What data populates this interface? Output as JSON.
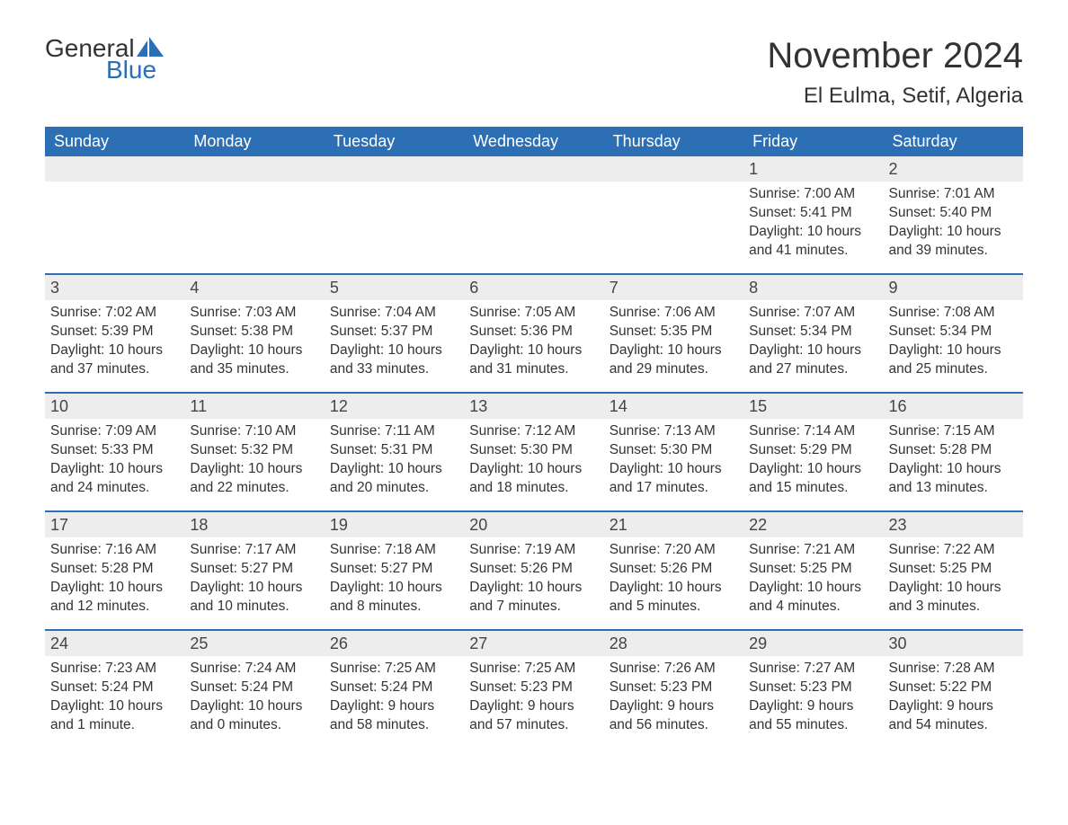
{
  "logo": {
    "top": "General",
    "bottom": "Blue",
    "icon_color": "#2c6fb5"
  },
  "title": "November 2024",
  "location": "El Eulma, Setif, Algeria",
  "header_bg": "#2c6fb5",
  "daynum_bg": "#ededed",
  "week_border": "#2c6fb5",
  "dow": [
    "Sunday",
    "Monday",
    "Tuesday",
    "Wednesday",
    "Thursday",
    "Friday",
    "Saturday"
  ],
  "weeks": [
    [
      null,
      null,
      null,
      null,
      null,
      {
        "n": "1",
        "sr": "7:00 AM",
        "ss": "5:41 PM",
        "dl": "10 hours and 41 minutes."
      },
      {
        "n": "2",
        "sr": "7:01 AM",
        "ss": "5:40 PM",
        "dl": "10 hours and 39 minutes."
      }
    ],
    [
      {
        "n": "3",
        "sr": "7:02 AM",
        "ss": "5:39 PM",
        "dl": "10 hours and 37 minutes."
      },
      {
        "n": "4",
        "sr": "7:03 AM",
        "ss": "5:38 PM",
        "dl": "10 hours and 35 minutes."
      },
      {
        "n": "5",
        "sr": "7:04 AM",
        "ss": "5:37 PM",
        "dl": "10 hours and 33 minutes."
      },
      {
        "n": "6",
        "sr": "7:05 AM",
        "ss": "5:36 PM",
        "dl": "10 hours and 31 minutes."
      },
      {
        "n": "7",
        "sr": "7:06 AM",
        "ss": "5:35 PM",
        "dl": "10 hours and 29 minutes."
      },
      {
        "n": "8",
        "sr": "7:07 AM",
        "ss": "5:34 PM",
        "dl": "10 hours and 27 minutes."
      },
      {
        "n": "9",
        "sr": "7:08 AM",
        "ss": "5:34 PM",
        "dl": "10 hours and 25 minutes."
      }
    ],
    [
      {
        "n": "10",
        "sr": "7:09 AM",
        "ss": "5:33 PM",
        "dl": "10 hours and 24 minutes."
      },
      {
        "n": "11",
        "sr": "7:10 AM",
        "ss": "5:32 PM",
        "dl": "10 hours and 22 minutes."
      },
      {
        "n": "12",
        "sr": "7:11 AM",
        "ss": "5:31 PM",
        "dl": "10 hours and 20 minutes."
      },
      {
        "n": "13",
        "sr": "7:12 AM",
        "ss": "5:30 PM",
        "dl": "10 hours and 18 minutes."
      },
      {
        "n": "14",
        "sr": "7:13 AM",
        "ss": "5:30 PM",
        "dl": "10 hours and 17 minutes."
      },
      {
        "n": "15",
        "sr": "7:14 AM",
        "ss": "5:29 PM",
        "dl": "10 hours and 15 minutes."
      },
      {
        "n": "16",
        "sr": "7:15 AM",
        "ss": "5:28 PM",
        "dl": "10 hours and 13 minutes."
      }
    ],
    [
      {
        "n": "17",
        "sr": "7:16 AM",
        "ss": "5:28 PM",
        "dl": "10 hours and 12 minutes."
      },
      {
        "n": "18",
        "sr": "7:17 AM",
        "ss": "5:27 PM",
        "dl": "10 hours and 10 minutes."
      },
      {
        "n": "19",
        "sr": "7:18 AM",
        "ss": "5:27 PM",
        "dl": "10 hours and 8 minutes."
      },
      {
        "n": "20",
        "sr": "7:19 AM",
        "ss": "5:26 PM",
        "dl": "10 hours and 7 minutes."
      },
      {
        "n": "21",
        "sr": "7:20 AM",
        "ss": "5:26 PM",
        "dl": "10 hours and 5 minutes."
      },
      {
        "n": "22",
        "sr": "7:21 AM",
        "ss": "5:25 PM",
        "dl": "10 hours and 4 minutes."
      },
      {
        "n": "23",
        "sr": "7:22 AM",
        "ss": "5:25 PM",
        "dl": "10 hours and 3 minutes."
      }
    ],
    [
      {
        "n": "24",
        "sr": "7:23 AM",
        "ss": "5:24 PM",
        "dl": "10 hours and 1 minute."
      },
      {
        "n": "25",
        "sr": "7:24 AM",
        "ss": "5:24 PM",
        "dl": "10 hours and 0 minutes."
      },
      {
        "n": "26",
        "sr": "7:25 AM",
        "ss": "5:24 PM",
        "dl": "9 hours and 58 minutes."
      },
      {
        "n": "27",
        "sr": "7:25 AM",
        "ss": "5:23 PM",
        "dl": "9 hours and 57 minutes."
      },
      {
        "n": "28",
        "sr": "7:26 AM",
        "ss": "5:23 PM",
        "dl": "9 hours and 56 minutes."
      },
      {
        "n": "29",
        "sr": "7:27 AM",
        "ss": "5:23 PM",
        "dl": "9 hours and 55 minutes."
      },
      {
        "n": "30",
        "sr": "7:28 AM",
        "ss": "5:22 PM",
        "dl": "9 hours and 54 minutes."
      }
    ]
  ],
  "labels": {
    "sunrise": "Sunrise: ",
    "sunset": "Sunset: ",
    "daylight": "Daylight: "
  }
}
